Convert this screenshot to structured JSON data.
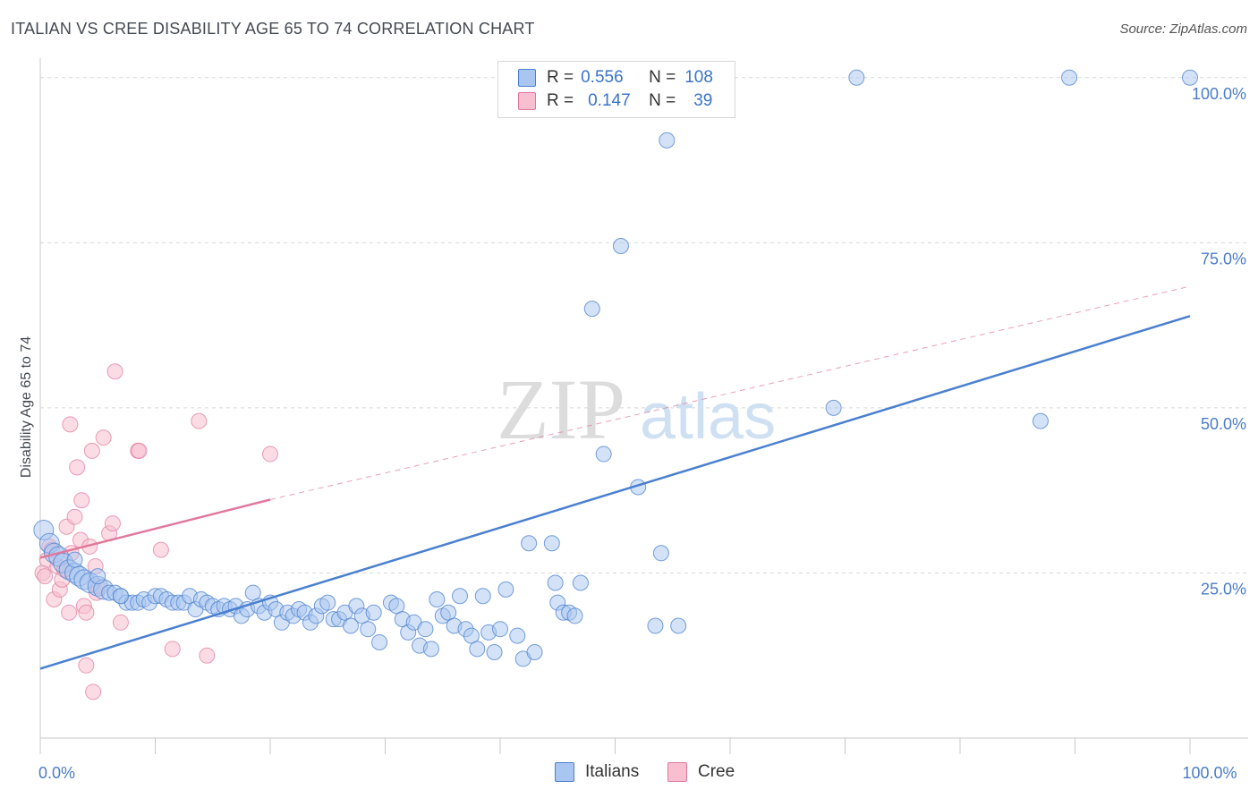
{
  "header": {
    "title": "ITALIAN VS CREE DISABILITY AGE 65 TO 74 CORRELATION CHART",
    "source": "Source: ZipAtlas.com"
  },
  "watermark": {
    "zip": "ZIP",
    "atlas": "atlas"
  },
  "legend_top": {
    "rows": [
      {
        "r_label": "R =",
        "r_value": "0.556",
        "n_label": "N =",
        "n_value": "108",
        "color": "#a9c6f0",
        "stroke": "#4a80cf"
      },
      {
        "r_label": "R =",
        "r_value": "0.147",
        "n_label": "N =",
        "n_value": "39",
        "color": "#f7bfd0",
        "stroke": "#e0789a"
      }
    ]
  },
  "legend_bottom": [
    {
      "label": "Italians",
      "color": "#a9c6f0",
      "stroke": "#4a80cf"
    },
    {
      "label": "Cree",
      "color": "#f7bfd0",
      "stroke": "#e0789a"
    }
  ],
  "chart_data": {
    "type": "scatter",
    "title": "ITALIAN VS CREE DISABILITY AGE 65 TO 74 CORRELATION CHART",
    "xlabel": "",
    "ylabel": "Disability Age 65 to 74",
    "xlim": [
      0,
      100
    ],
    "ylim": [
      0,
      102
    ],
    "x_tick_labels": [
      {
        "value": 0,
        "label": "0.0%"
      },
      {
        "value": 100,
        "label": "100.0%"
      }
    ],
    "y_tick_labels": [
      {
        "value": 25,
        "label": "25.0%"
      },
      {
        "value": 50,
        "label": "50.0%"
      },
      {
        "value": 75,
        "label": "75.0%"
      },
      {
        "value": 100,
        "label": "100.0%"
      }
    ],
    "x_minor_ticks": [
      0,
      10,
      20,
      30,
      40,
      50,
      60,
      70,
      80,
      90,
      100
    ],
    "grid": true,
    "series": [
      {
        "name": "Italians",
        "color": "#4a80cf",
        "fill": "#a9c6f0",
        "trend": {
          "x0": 0,
          "y0": 10.5,
          "x1": 100,
          "y1": 63.9
        },
        "points": [
          [
            0.3,
            31.5
          ],
          [
            0.8,
            29.5
          ],
          [
            1.2,
            28
          ],
          [
            1.6,
            27.5
          ],
          [
            2,
            26.5
          ],
          [
            2.5,
            25.5
          ],
          [
            3,
            25
          ],
          [
            3.4,
            24.5
          ],
          [
            3.8,
            24
          ],
          [
            4.3,
            23.5
          ],
          [
            5,
            23
          ],
          [
            5.5,
            22.5
          ],
          [
            6,
            22
          ],
          [
            6.5,
            22
          ],
          [
            7,
            21.5
          ],
          [
            7.5,
            20.5
          ],
          [
            8,
            20.5
          ],
          [
            8.5,
            20.5
          ],
          [
            9,
            21
          ],
          [
            9.5,
            20.5
          ],
          [
            10,
            21.5
          ],
          [
            10.5,
            21.5
          ],
          [
            11,
            21
          ],
          [
            11.5,
            20.5
          ],
          [
            12,
            20.5
          ],
          [
            12.5,
            20.5
          ],
          [
            13,
            21.5
          ],
          [
            13.5,
            19.5
          ],
          [
            14,
            21
          ],
          [
            14.5,
            20.5
          ],
          [
            15,
            20
          ],
          [
            15.5,
            19.5
          ],
          [
            16,
            20
          ],
          [
            16.5,
            19.5
          ],
          [
            17,
            20
          ],
          [
            17.5,
            18.5
          ],
          [
            18,
            19.5
          ],
          [
            18.5,
            22
          ],
          [
            19,
            20
          ],
          [
            19.5,
            19
          ],
          [
            20,
            20.5
          ],
          [
            20.5,
            19.5
          ],
          [
            21,
            17.5
          ],
          [
            21.5,
            19
          ],
          [
            22,
            18.5
          ],
          [
            22.5,
            19.5
          ],
          [
            23,
            19
          ],
          [
            23.5,
            17.5
          ],
          [
            24,
            18.5
          ],
          [
            24.5,
            20
          ],
          [
            25,
            20.5
          ],
          [
            25.5,
            18
          ],
          [
            26,
            18
          ],
          [
            26.5,
            19
          ],
          [
            27,
            17
          ],
          [
            27.5,
            20
          ],
          [
            28,
            18.5
          ],
          [
            28.5,
            16.5
          ],
          [
            29,
            19
          ],
          [
            29.5,
            14.5
          ],
          [
            30.5,
            20.5
          ],
          [
            31,
            20
          ],
          [
            31.5,
            18
          ],
          [
            32,
            16
          ],
          [
            32.5,
            17.5
          ],
          [
            33,
            14
          ],
          [
            33.5,
            16.5
          ],
          [
            34,
            13.5
          ],
          [
            34.5,
            21
          ],
          [
            35,
            18.5
          ],
          [
            35.5,
            19
          ],
          [
            36,
            17
          ],
          [
            36.5,
            21.5
          ],
          [
            37,
            16.5
          ],
          [
            37.5,
            15.5
          ],
          [
            38,
            13.5
          ],
          [
            38.5,
            21.5
          ],
          [
            39,
            16
          ],
          [
            39.5,
            13
          ],
          [
            40,
            16.5
          ],
          [
            40.5,
            22.5
          ],
          [
            41.5,
            15.5
          ],
          [
            42,
            12
          ],
          [
            42.5,
            29.5
          ],
          [
            43,
            13
          ],
          [
            44.5,
            29.5
          ],
          [
            44.8,
            23.5
          ],
          [
            45,
            20.5
          ],
          [
            45.5,
            19
          ],
          [
            46,
            19
          ],
          [
            46.5,
            18.5
          ],
          [
            47,
            23.5
          ],
          [
            48,
            65
          ],
          [
            49,
            43
          ],
          [
            50.5,
            74.5
          ],
          [
            52,
            38
          ],
          [
            53.5,
            17
          ],
          [
            54,
            28
          ],
          [
            54.5,
            90.5
          ],
          [
            55.5,
            17
          ],
          [
            69,
            50
          ],
          [
            71,
            100
          ],
          [
            87,
            48
          ],
          [
            89.5,
            100
          ],
          [
            100,
            100
          ],
          [
            3,
            27
          ],
          [
            5,
            24.5
          ],
          [
            7,
            21.5
          ]
        ]
      },
      {
        "name": "Cree",
        "color": "#e0789a",
        "fill": "#f7bfd0",
        "trend": {
          "x0": 0,
          "y0": 27.3,
          "x1": 20,
          "y1": 36.1
        },
        "trend_dashed": {
          "x0": 20,
          "y0": 36.1,
          "x1": 100,
          "y1": 68.4
        },
        "points": [
          [
            0.2,
            25
          ],
          [
            0.4,
            24.5
          ],
          [
            0.6,
            27
          ],
          [
            0.8,
            29
          ],
          [
            1,
            28.5
          ],
          [
            1.2,
            21
          ],
          [
            1.5,
            26
          ],
          [
            1.7,
            22.5
          ],
          [
            1.9,
            24
          ],
          [
            2.1,
            25.5
          ],
          [
            2.3,
            32
          ],
          [
            2.5,
            19
          ],
          [
            2.6,
            47.5
          ],
          [
            2.7,
            28
          ],
          [
            3,
            33.5
          ],
          [
            3.2,
            41
          ],
          [
            3.5,
            30
          ],
          [
            3.6,
            36
          ],
          [
            3.8,
            20
          ],
          [
            4,
            19
          ],
          [
            4,
            11
          ],
          [
            4.3,
            29
          ],
          [
            4.5,
            43.5
          ],
          [
            4.6,
            7
          ],
          [
            4.8,
            26
          ],
          [
            4.9,
            22
          ],
          [
            5,
            23
          ],
          [
            5.5,
            45.5
          ],
          [
            6,
            31
          ],
          [
            6.3,
            32.5
          ],
          [
            6.5,
            55.5
          ],
          [
            7,
            17.5
          ],
          [
            8.5,
            43.5
          ],
          [
            8.6,
            43.5
          ],
          [
            10.5,
            28.5
          ],
          [
            11.5,
            13.5
          ],
          [
            13.8,
            48
          ],
          [
            14.5,
            12.5
          ],
          [
            20,
            43
          ]
        ]
      }
    ]
  }
}
